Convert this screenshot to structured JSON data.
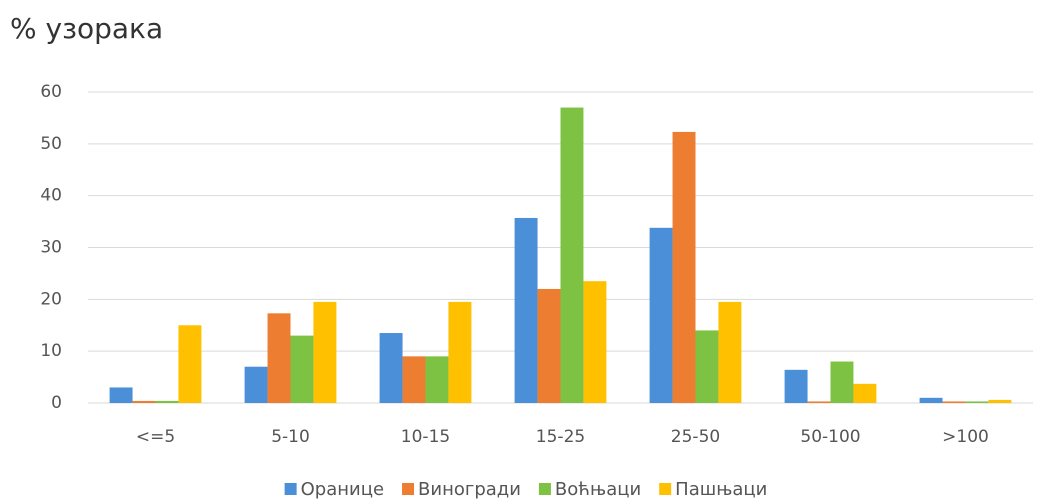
{
  "chart_data": {
    "type": "bar",
    "title": "% узорака",
    "categories": [
      "<=5",
      "5-10",
      "10-15",
      "15-25",
      "25-50",
      "50-100",
      ">100"
    ],
    "series": [
      {
        "name": "Оранице",
        "color": "#4a8fd8",
        "values": [
          3,
          7,
          13.5,
          35.7,
          33.8,
          6.4,
          1
        ]
      },
      {
        "name": "Виногради",
        "color": "#ed7d31",
        "values": [
          0.4,
          17.3,
          9,
          22,
          52.3,
          0.3,
          0.3
        ]
      },
      {
        "name": "Воћњаци",
        "color": "#7dc242",
        "values": [
          0.4,
          13,
          9,
          57,
          14,
          8,
          0.3
        ]
      },
      {
        "name": "Пашњаци",
        "color": "#ffc000",
        "values": [
          15,
          19.5,
          19.5,
          23.5,
          19.5,
          3.7,
          0.6
        ]
      }
    ],
    "ylim": [
      0,
      60
    ],
    "yticks": [
      0,
      10,
      20,
      30,
      40,
      50,
      60
    ],
    "grid": true,
    "legend": "bottom"
  }
}
